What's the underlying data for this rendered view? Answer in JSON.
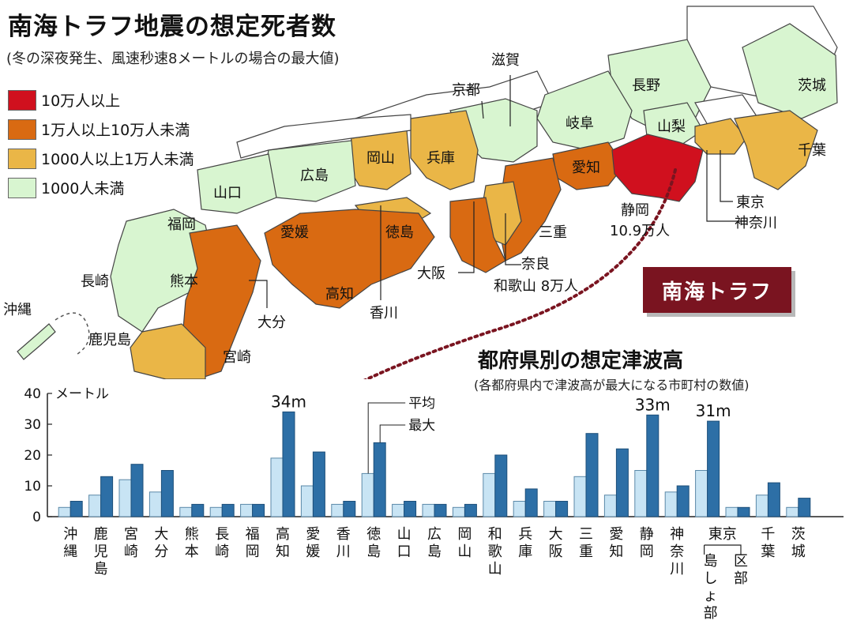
{
  "header": {
    "title": "南海トラフ地震の想定死者数",
    "subtitle": "(冬の深夜発生、風速秒速8メートルの場合の最大値)"
  },
  "legend": [
    {
      "label": "10万人以上",
      "color": "#d0101e"
    },
    {
      "label": "1万人以上10万人未満",
      "color": "#d96a12"
    },
    {
      "label": "1000人以上1万人未満",
      "color": "#eab647"
    },
    {
      "label": "1000人未満",
      "color": "#d8f5d0"
    }
  ],
  "map": {
    "badge": "南海トラフ",
    "colors": {
      "none": "#ffffff",
      "very_high": "#d0101e",
      "high": "#d96a12",
      "mid": "#eab647",
      "low": "#d8f5d0",
      "line": "#7a1420"
    },
    "labels": [
      {
        "id": "shizuoka",
        "text": "静岡"
      },
      {
        "id": "shizuoka-deaths",
        "text": "10.9万人"
      },
      {
        "id": "wakayama",
        "text": "和歌山 8万人"
      },
      {
        "id": "shiga",
        "text": "滋賀"
      },
      {
        "id": "kyoto",
        "text": "京都"
      },
      {
        "id": "nagano",
        "text": "長野"
      },
      {
        "id": "ibaraki",
        "text": "茨城"
      },
      {
        "id": "gifu",
        "text": "岐阜"
      },
      {
        "id": "yamanashi",
        "text": "山梨"
      },
      {
        "id": "chiba",
        "text": "千葉"
      },
      {
        "id": "aichi",
        "text": "愛知"
      },
      {
        "id": "tokyo",
        "text": "東京"
      },
      {
        "id": "kanagawa",
        "text": "神奈川"
      },
      {
        "id": "mie",
        "text": "三重"
      },
      {
        "id": "nara",
        "text": "奈良"
      },
      {
        "id": "osaka",
        "text": "大阪"
      },
      {
        "id": "hyogo",
        "text": "兵庫"
      },
      {
        "id": "okayama",
        "text": "岡山"
      },
      {
        "id": "hiroshima",
        "text": "広島"
      },
      {
        "id": "yamaguchi",
        "text": "山口"
      },
      {
        "id": "tokushima",
        "text": "徳島"
      },
      {
        "id": "ehime",
        "text": "愛媛"
      },
      {
        "id": "kochi",
        "text": "高知"
      },
      {
        "id": "kagawa",
        "text": "香川"
      },
      {
        "id": "fukuoka",
        "text": "福岡"
      },
      {
        "id": "nagasaki",
        "text": "長崎"
      },
      {
        "id": "kumamoto",
        "text": "熊本"
      },
      {
        "id": "oita",
        "text": "大分"
      },
      {
        "id": "miyazaki",
        "text": "宮崎"
      },
      {
        "id": "kagoshima",
        "text": "鹿児島"
      },
      {
        "id": "okinawa",
        "text": "沖縄"
      }
    ]
  },
  "chart_data": {
    "type": "bar",
    "title": "都府県別の想定津波高",
    "subtitle": "(各都府県内で津波高が最大になる市町村の数値)",
    "ylabel": "メートル",
    "ylim": [
      0,
      40
    ],
    "yticks": [
      0,
      10,
      20,
      30,
      40
    ],
    "legend": [
      "平均",
      "最大"
    ],
    "colors": {
      "平均": "#c8e4f4",
      "最大": "#2d6fa6"
    },
    "categories": [
      "沖縄",
      "鹿児島",
      "宮崎",
      "大分",
      "熊本",
      "長崎",
      "福岡",
      "高知",
      "愛媛",
      "香川",
      "徳島",
      "山口",
      "広島",
      "岡山",
      "和歌山",
      "兵庫",
      "大阪",
      "三重",
      "愛知",
      "静岡",
      "神奈川",
      "東京",
      "東京",
      "千葉",
      "茨城"
    ],
    "category_sublabels": [
      "",
      "",
      "",
      "",
      "",
      "",
      "",
      "",
      "",
      "",
      "",
      "",
      "",
      "",
      "",
      "",
      "",
      "",
      "",
      "",
      "",
      "島しょ部",
      "区部",
      "",
      ""
    ],
    "series": [
      {
        "name": "平均",
        "values": [
          3,
          7,
          12,
          8,
          3,
          3,
          4,
          19,
          10,
          4,
          14,
          4,
          4,
          3,
          14,
          5,
          5,
          13,
          7,
          15,
          8,
          15,
          3,
          7,
          3
        ]
      },
      {
        "name": "最大",
        "values": [
          5,
          13,
          17,
          15,
          4,
          4,
          4,
          34,
          21,
          5,
          24,
          5,
          4,
          4,
          20,
          9,
          5,
          27,
          22,
          33,
          10,
          31,
          3,
          11,
          6
        ]
      }
    ],
    "annotations": [
      "34m",
      "33m",
      "31m"
    ]
  }
}
